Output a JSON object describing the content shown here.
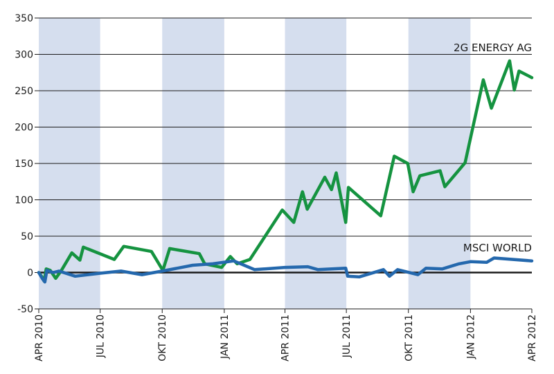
{
  "chart_data": {
    "type": "line",
    "title": "",
    "xlabel": "",
    "ylabel": "",
    "ylim": [
      -50,
      350
    ],
    "yticks": [
      -50,
      0,
      50,
      100,
      150,
      200,
      250,
      300,
      350
    ],
    "xlim": [
      "2010-04-01",
      "2012-04-01"
    ],
    "xticks": [
      {
        "date": "2010-04-01",
        "label": "APR 2010"
      },
      {
        "date": "2010-07-01",
        "label": "JUL 2010"
      },
      {
        "date": "2010-10-01",
        "label": "OKT 2010"
      },
      {
        "date": "2011-01-01",
        "label": "JAN 2011"
      },
      {
        "date": "2011-04-01",
        "label": "APR 2011"
      },
      {
        "date": "2011-07-01",
        "label": "JUL 2011"
      },
      {
        "date": "2011-10-01",
        "label": "OKT 2011"
      },
      {
        "date": "2012-01-01",
        "label": "JAN 2012"
      },
      {
        "date": "2012-04-01",
        "label": "APR 2012"
      }
    ],
    "shaded_quarters": [
      [
        "2010-04-01",
        "2010-07-01"
      ],
      [
        "2010-10-01",
        "2011-01-01"
      ],
      [
        "2011-04-01",
        "2011-07-01"
      ],
      [
        "2011-10-01",
        "2012-01-01"
      ]
    ],
    "grid": "horizontal",
    "colors": {
      "shade": "#d5deee",
      "grid": "#1a1a1a"
    },
    "series": [
      {
        "name": "2G ENERGY AG",
        "color": "#159340",
        "points": [
          [
            "2010-04-01",
            0
          ],
          [
            "2010-04-05",
            -5
          ],
          [
            "2010-04-09",
            -12
          ],
          [
            "2010-04-12",
            5
          ],
          [
            "2010-04-18",
            3
          ],
          [
            "2010-04-26",
            -8
          ],
          [
            "2010-05-04",
            2
          ],
          [
            "2010-05-20",
            27
          ],
          [
            "2010-06-01",
            17
          ],
          [
            "2010-06-06",
            35
          ],
          [
            "2010-07-22",
            18
          ],
          [
            "2010-08-05",
            36
          ],
          [
            "2010-09-15",
            29
          ],
          [
            "2010-10-02",
            3
          ],
          [
            "2010-10-12",
            33
          ],
          [
            "2010-11-25",
            26
          ],
          [
            "2010-12-03",
            12
          ],
          [
            "2010-12-28",
            7
          ],
          [
            "2011-01-10",
            22
          ],
          [
            "2011-01-20",
            12
          ],
          [
            "2011-02-08",
            18
          ],
          [
            "2011-03-28",
            86
          ],
          [
            "2011-04-14",
            69
          ],
          [
            "2011-04-27",
            111
          ],
          [
            "2011-05-04",
            87
          ],
          [
            "2011-05-30",
            131
          ],
          [
            "2011-06-09",
            114
          ],
          [
            "2011-06-16",
            137
          ],
          [
            "2011-06-30",
            69
          ],
          [
            "2011-07-04",
            117
          ],
          [
            "2011-08-21",
            78
          ],
          [
            "2011-09-10",
            160
          ],
          [
            "2011-09-30",
            150
          ],
          [
            "2011-10-08",
            111
          ],
          [
            "2011-10-18",
            133
          ],
          [
            "2011-11-17",
            140
          ],
          [
            "2011-11-24",
            118
          ],
          [
            "2011-12-24",
            151
          ],
          [
            "2012-01-20",
            265
          ],
          [
            "2012-02-01",
            226
          ],
          [
            "2012-02-28",
            291
          ],
          [
            "2012-03-06",
            251
          ],
          [
            "2012-03-13",
            277
          ],
          [
            "2012-04-01",
            268
          ]
        ]
      },
      {
        "name": "MSCI WORLD",
        "color": "#2468ad",
        "points": [
          [
            "2010-04-01",
            0
          ],
          [
            "2010-04-06",
            -8
          ],
          [
            "2010-04-10",
            -13
          ],
          [
            "2010-04-13",
            3
          ],
          [
            "2010-04-22",
            0
          ],
          [
            "2010-05-01",
            2
          ],
          [
            "2010-05-25",
            -5
          ],
          [
            "2010-06-30",
            -1
          ],
          [
            "2010-08-01",
            2
          ],
          [
            "2010-09-01",
            -3
          ],
          [
            "2010-10-01",
            2
          ],
          [
            "2010-11-15",
            10
          ],
          [
            "2010-12-15",
            12
          ],
          [
            "2011-01-15",
            16
          ],
          [
            "2011-02-15",
            4
          ],
          [
            "2011-04-01",
            7
          ],
          [
            "2011-05-05",
            8
          ],
          [
            "2011-05-20",
            4
          ],
          [
            "2011-06-30",
            6
          ],
          [
            "2011-07-03",
            -5
          ],
          [
            "2011-07-20",
            -6
          ],
          [
            "2011-08-25",
            4
          ],
          [
            "2011-09-03",
            -5
          ],
          [
            "2011-09-15",
            4
          ],
          [
            "2011-10-15",
            -3
          ],
          [
            "2011-10-27",
            6
          ],
          [
            "2011-11-20",
            5
          ],
          [
            "2011-12-15",
            12
          ],
          [
            "2012-01-01",
            15
          ],
          [
            "2012-01-25",
            14
          ],
          [
            "2012-02-05",
            20
          ],
          [
            "2012-04-01",
            16
          ]
        ]
      }
    ]
  }
}
